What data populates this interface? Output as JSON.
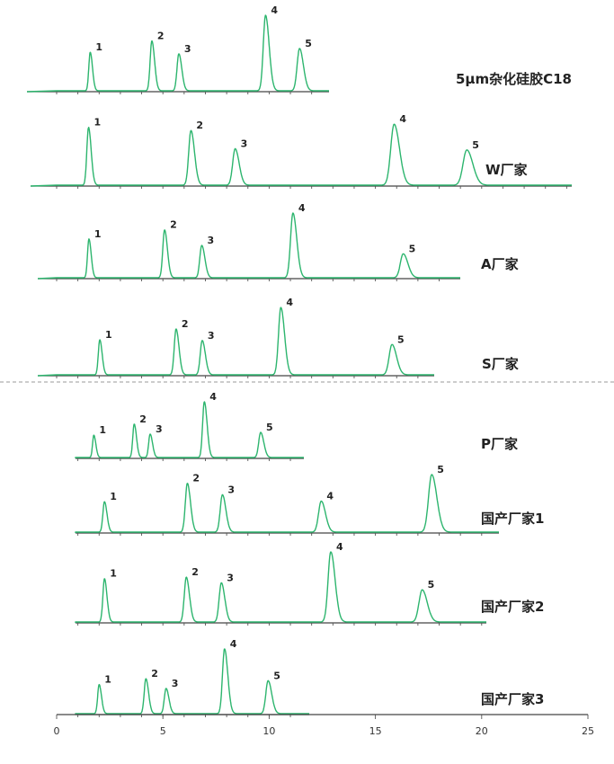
{
  "chart_data": {
    "type": "line",
    "xlabel": "",
    "ylabel": "",
    "xlim": [
      0,
      25
    ],
    "x_ticks": [
      "0",
      "5",
      "10",
      "15",
      "20",
      "25"
    ],
    "trace_color": "#2db56e",
    "divider_color": "#999999",
    "series": [
      {
        "name": "5μm杂化硅胶C18",
        "peaks": [
          {
            "label": "1",
            "x": 1.58,
            "height": 0.51
          },
          {
            "label": "2",
            "x": 4.48,
            "height": 0.66
          },
          {
            "label": "3",
            "x": 5.75,
            "height": 0.49
          },
          {
            "label": "4",
            "x": 9.83,
            "height": 1.0
          },
          {
            "label": "5",
            "x": 11.43,
            "height": 0.56
          }
        ]
      },
      {
        "name": "W厂家",
        "peaks": [
          {
            "label": "1",
            "x": 1.5,
            "height": 0.92
          },
          {
            "label": "2",
            "x": 6.32,
            "height": 0.87
          },
          {
            "label": "3",
            "x": 8.4,
            "height": 0.58
          },
          {
            "label": "4",
            "x": 15.88,
            "height": 0.97
          },
          {
            "label": "5",
            "x": 19.3,
            "height": 0.56
          }
        ]
      },
      {
        "name": "A厂家",
        "peaks": [
          {
            "label": "1",
            "x": 1.52,
            "height": 0.6
          },
          {
            "label": "2",
            "x": 5.08,
            "height": 0.74
          },
          {
            "label": "3",
            "x": 6.83,
            "height": 0.5
          },
          {
            "label": "4",
            "x": 11.12,
            "height": 1.0
          },
          {
            "label": "5",
            "x": 16.31,
            "height": 0.37
          }
        ]
      },
      {
        "name": "S厂家",
        "peaks": [
          {
            "label": "1",
            "x": 2.03,
            "height": 0.52
          },
          {
            "label": "2",
            "x": 5.62,
            "height": 0.68
          },
          {
            "label": "3",
            "x": 6.85,
            "height": 0.51
          },
          {
            "label": "4",
            "x": 10.55,
            "height": 1.0
          },
          {
            "label": "5",
            "x": 15.78,
            "height": 0.45
          }
        ]
      },
      {
        "name": "P厂家",
        "peaks": [
          {
            "label": "1",
            "x": 1.75,
            "height": 0.4
          },
          {
            "label": "2",
            "x": 3.65,
            "height": 0.6
          },
          {
            "label": "3",
            "x": 4.4,
            "height": 0.42
          },
          {
            "label": "4",
            "x": 6.95,
            "height": 1.0
          },
          {
            "label": "5",
            "x": 9.6,
            "height": 0.45
          }
        ]
      },
      {
        "name": "国产厂家1",
        "peaks": [
          {
            "label": "1",
            "x": 2.25,
            "height": 0.53
          },
          {
            "label": "2",
            "x": 6.15,
            "height": 0.85
          },
          {
            "label": "3",
            "x": 7.8,
            "height": 0.65
          },
          {
            "label": "4",
            "x": 12.45,
            "height": 0.54
          },
          {
            "label": "5",
            "x": 17.65,
            "height": 1.0
          }
        ]
      },
      {
        "name": "国产厂家2",
        "peaks": [
          {
            "label": "1",
            "x": 2.25,
            "height": 0.62
          },
          {
            "label": "2",
            "x": 6.1,
            "height": 0.64
          },
          {
            "label": "3",
            "x": 7.75,
            "height": 0.56
          },
          {
            "label": "4",
            "x": 12.9,
            "height": 1.0
          },
          {
            "label": "5",
            "x": 17.2,
            "height": 0.46
          }
        ]
      },
      {
        "name": "国产厂家3",
        "peaks": [
          {
            "label": "1",
            "x": 2.0,
            "height": 0.45
          },
          {
            "label": "2",
            "x": 4.2,
            "height": 0.54
          },
          {
            "label": "3",
            "x": 5.15,
            "height": 0.39
          },
          {
            "label": "4",
            "x": 7.9,
            "height": 1.0
          },
          {
            "label": "5",
            "x": 9.95,
            "height": 0.51
          }
        ]
      }
    ]
  }
}
